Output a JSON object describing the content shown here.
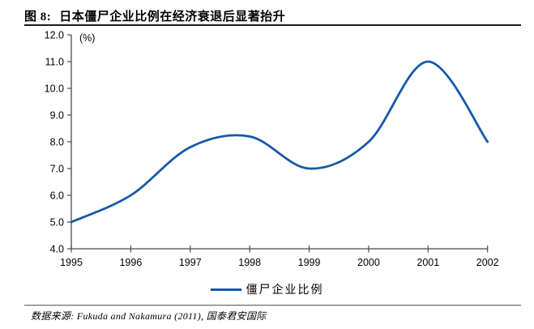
{
  "figure": {
    "title_prefix": "图 8:",
    "title": "日本僵尸企业比例在经济衰退后显著抬升",
    "source_note": "数据来源:  Fukuda and Nakamura (2011), 国泰君安国际"
  },
  "chart_data": {
    "type": "line",
    "title": "图 8: 日本僵尸企业比例在经济衰退后显著抬升",
    "unit_label": "(%)",
    "xlabel": "",
    "ylabel": "(%)",
    "x": [
      1995,
      1996,
      1997,
      1998,
      1999,
      2000,
      2001,
      2002
    ],
    "x_tick_labels": [
      "1995",
      "1996",
      "1997",
      "1998",
      "1999",
      "2000",
      "2001",
      "2002"
    ],
    "y_tick_labels": [
      "4.0",
      "5.0",
      "6.0",
      "7.0",
      "8.0",
      "9.0",
      "10.0",
      "11.0",
      "12.0"
    ],
    "ylim": [
      4.0,
      12.0
    ],
    "ytick_step": 1.0,
    "grid": false,
    "smoothed": true,
    "legend_position": "bottom",
    "axis_color": "#4a4a4a",
    "series": [
      {
        "name": "僵尸企业比例",
        "color": "#1658A8",
        "values": [
          5.0,
          6.0,
          7.8,
          8.2,
          7.0,
          8.0,
          11.0,
          8.0
        ]
      }
    ],
    "source": "数据来源: Fukuda and Nakamura (2011), 国泰君安国际"
  }
}
